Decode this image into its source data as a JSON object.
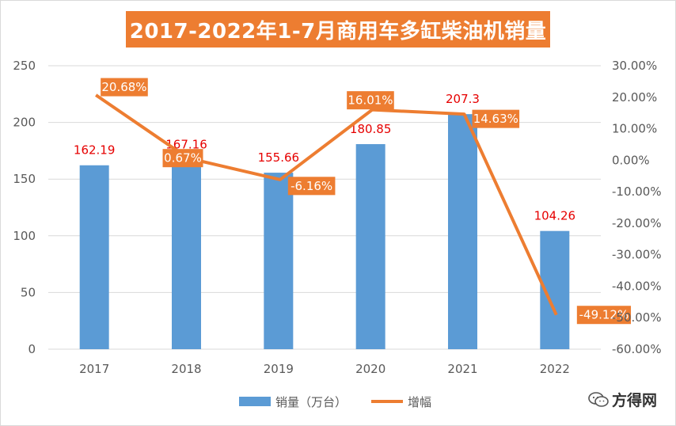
{
  "title": "2017-2022年1-7月商用车多缸柴油机销量",
  "watermark": "方得网",
  "colors": {
    "bar": "#5b9bd5",
    "line": "#ed7d31",
    "bar_label": "#e60000",
    "title_bg": "#ed7d31"
  },
  "chart_data": {
    "type": "bar",
    "categories": [
      "2017",
      "2018",
      "2019",
      "2020",
      "2021",
      "2022"
    ],
    "series": [
      {
        "name": "销量（万台）",
        "type": "bar",
        "axis": "left",
        "values": [
          162.19,
          167.16,
          155.66,
          180.85,
          207.3,
          104.26
        ],
        "labels": [
          "162.19",
          "167.16",
          "155.66",
          "180.85",
          "207.3",
          "104.26"
        ]
      },
      {
        "name": "增幅",
        "type": "line",
        "axis": "right",
        "values": [
          20.68,
          0.67,
          -6.16,
          16.01,
          14.63,
          -49.12
        ],
        "labels": [
          "20.68%",
          "0.67%",
          "-6.16%",
          "16.01%",
          "14.63%",
          "-49.12%"
        ]
      }
    ],
    "y_left": {
      "min": 0,
      "max": 250,
      "step": 50,
      "ticks": [
        "0",
        "50",
        "100",
        "150",
        "200",
        "250"
      ]
    },
    "y_right": {
      "min": -60,
      "max": 30,
      "step": 10,
      "ticks": [
        "-60.00%",
        "-50.00%",
        "-40.00%",
        "-30.00%",
        "-20.00%",
        "-10.00%",
        "0.00%",
        "10.00%",
        "20.00%",
        "30.00%"
      ]
    },
    "grid": true,
    "legend": "bottom"
  }
}
